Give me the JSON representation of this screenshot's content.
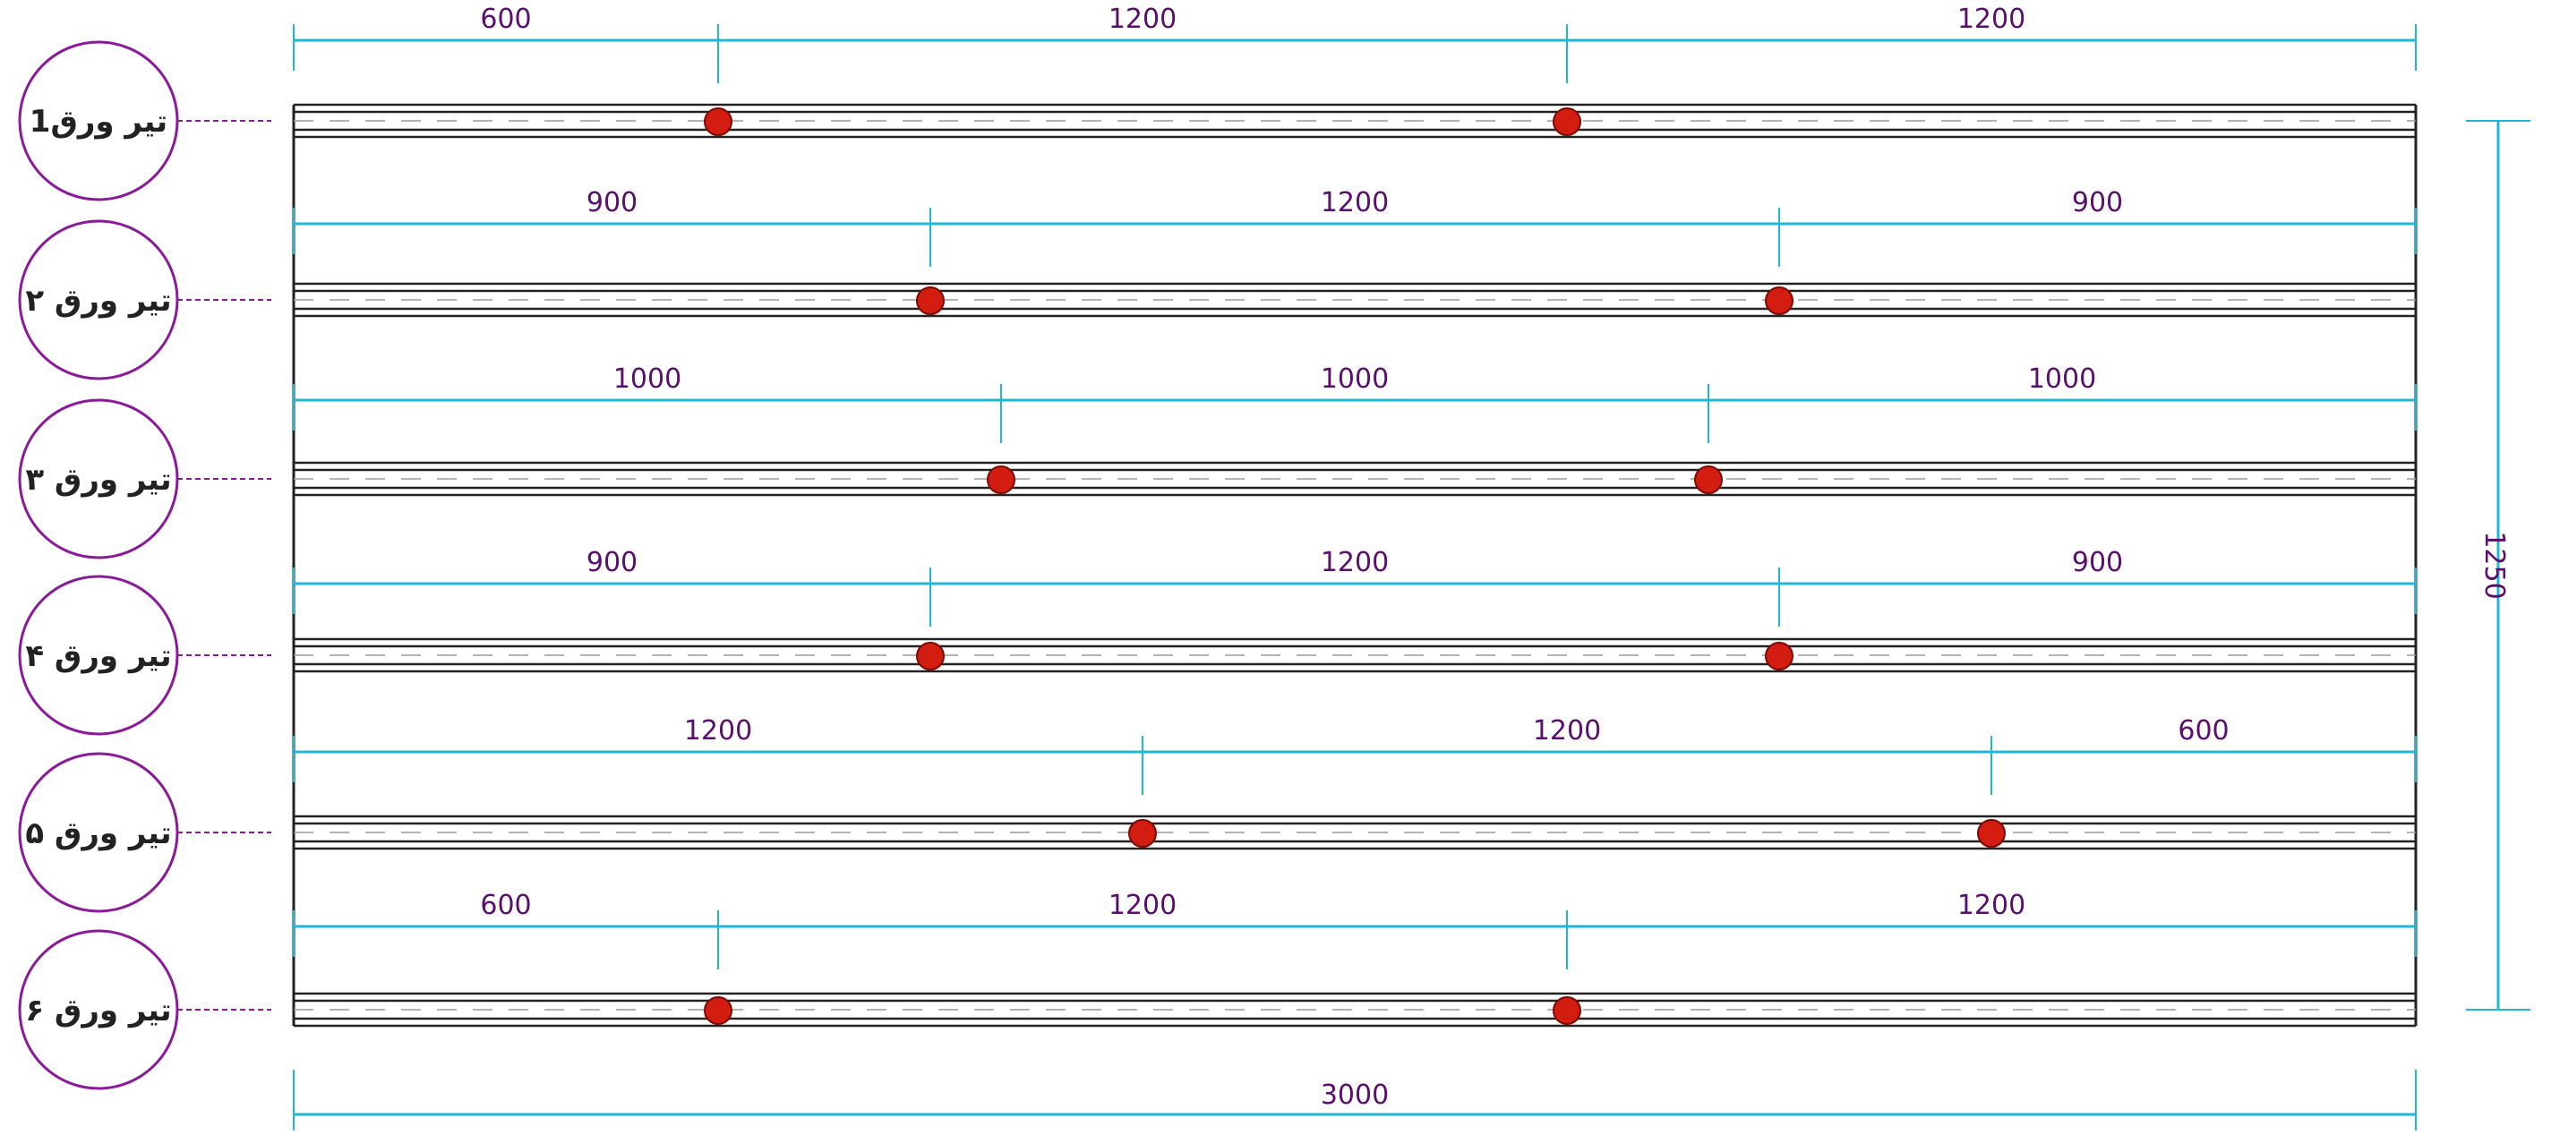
{
  "colors": {
    "dimension_line": "#1fb7d4",
    "dimension_text": "#5a0f6e",
    "tag_circle": "#8a1a9a",
    "leader": "#8a1a9a",
    "beam_line": "#222222",
    "bolt": "#d21d10"
  },
  "beams": [
    {
      "label": "تیر ورق1",
      "spacings": [
        "600",
        "1200",
        "1200"
      ],
      "bolt_positions": [
        600,
        1800
      ]
    },
    {
      "label": "تیر ورق ۲",
      "spacings": [
        "900",
        "1200",
        "900"
      ],
      "bolt_positions": [
        900,
        2100
      ]
    },
    {
      "label": "تیر ورق ۳",
      "spacings": [
        "1000",
        "1000",
        "1000"
      ],
      "bolt_positions": [
        1000,
        2000
      ]
    },
    {
      "label": "تیر ورق ۴",
      "spacings": [
        "900",
        "1200",
        "900"
      ],
      "bolt_positions": [
        900,
        2100
      ]
    },
    {
      "label": "تیر ورق ۵",
      "spacings": [
        "1200",
        "1200",
        "600"
      ],
      "bolt_positions": [
        1200,
        2400
      ]
    },
    {
      "label": "تیر ورق ۶",
      "spacings": [
        "600",
        "1200",
        "1200"
      ],
      "bolt_positions": [
        600,
        1800
      ]
    }
  ],
  "overall_width": "3000",
  "overall_width_value": 3000,
  "overall_height": "1250"
}
